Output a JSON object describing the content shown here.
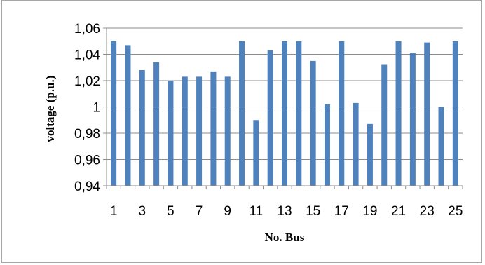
{
  "chart_data": {
    "type": "bar",
    "title": "",
    "xlabel": "No. Bus",
    "ylabel": "voltage (p.u.)",
    "ylim": [
      0.94,
      1.06
    ],
    "yticks": [
      0.94,
      0.96,
      0.98,
      1.0,
      1.02,
      1.04,
      1.06
    ],
    "ytick_labels": [
      "0,94",
      "0,96",
      "0,98",
      "1",
      "1,02",
      "1,04",
      "1,06"
    ],
    "categories": [
      "1",
      "2",
      "3",
      "4",
      "5",
      "6",
      "7",
      "8",
      "9",
      "10",
      "11",
      "12",
      "13",
      "14",
      "15",
      "16",
      "17",
      "18",
      "19",
      "20",
      "21",
      "22",
      "23",
      "24",
      "25"
    ],
    "xtick_labels_shown": [
      "1",
      "3",
      "5",
      "7",
      "9",
      "11",
      "13",
      "15",
      "17",
      "19",
      "21",
      "23",
      "25"
    ],
    "values": [
      1.05,
      1.047,
      1.028,
      1.034,
      1.02,
      1.023,
      1.023,
      1.027,
      1.023,
      1.05,
      0.99,
      1.043,
      1.05,
      1.05,
      1.035,
      1.002,
      1.05,
      1.003,
      0.987,
      1.032,
      1.05,
      1.041,
      1.049,
      1.0,
      1.05
    ],
    "bar_color": "#4f81bd",
    "grid": true,
    "grid_axis": "y",
    "legend": "none"
  }
}
